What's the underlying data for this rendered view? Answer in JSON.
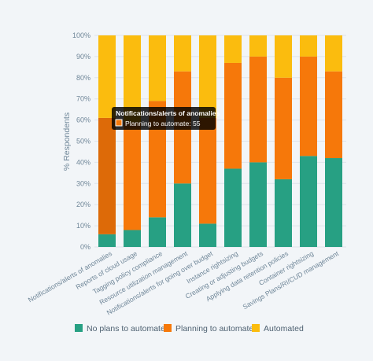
{
  "chart_data": {
    "type": "bar",
    "stacked": true,
    "ylabel": "% Respondents",
    "xlabel": "",
    "ylim": [
      0,
      100
    ],
    "yticks": [
      "0%",
      "10%",
      "20%",
      "30%",
      "40%",
      "50%",
      "60%",
      "70%",
      "80%",
      "90%",
      "100%"
    ],
    "grid": true,
    "legend_position": "bottom",
    "categories": [
      "Notifications/alerts of anomalies",
      "Reports of cloud usage",
      "Tagging policy compliance",
      "Resource utilization management",
      "Notifications/alerts for going over budget",
      "Instance rightsizing",
      "Creating or adjusting budgets",
      "Applying data retention policies",
      "Container rightsizing",
      "Savings Plans/RI/CUD management"
    ],
    "series": [
      {
        "name": "No plans to automate",
        "color": "#27a083",
        "values": [
          6,
          8,
          14,
          30,
          11,
          37,
          40,
          32,
          43,
          42
        ]
      },
      {
        "name": "Planning to automate",
        "color": "#f6780a",
        "values": [
          55,
          51,
          55,
          53,
          50,
          50,
          50,
          48,
          47,
          41
        ]
      },
      {
        "name": "Automated",
        "color": "#fbbc0e",
        "values": [
          39,
          41,
          31,
          17,
          39,
          13,
          10,
          20,
          10,
          17
        ]
      }
    ],
    "tooltip": {
      "title": "Notifications/alerts of anomalies",
      "series_index": 1,
      "category_index": 0,
      "body": "Planning to automate: 55"
    }
  }
}
